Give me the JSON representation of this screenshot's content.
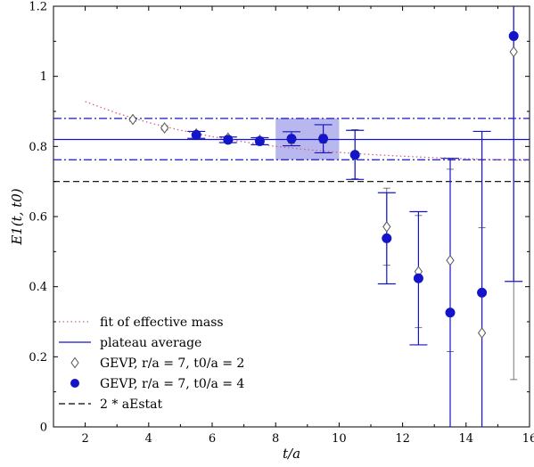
{
  "chart_data": {
    "type": "scatter",
    "xlabel": "t/a",
    "ylabel": "E1(t, t0)",
    "xlim": [
      1,
      16
    ],
    "ylim": [
      0,
      1.2
    ],
    "xticks": [
      "2",
      "4",
      "6",
      "8",
      "10",
      "12",
      "14",
      "16"
    ],
    "yticks": [
      "0",
      "0.2",
      "0.4",
      "0.6",
      "0.8",
      "1",
      "1.2"
    ],
    "legend_position": "bottom-left",
    "colors": {
      "blue": "#1414c8",
      "fit": "#d06080",
      "grey": "#555555",
      "band": "#9a9ae8"
    },
    "plateau": {
      "value": 0.82,
      "upper": 0.88,
      "lower": 0.762,
      "x_from": 8,
      "x_to": 10
    },
    "stat_threshold": 0.7,
    "fit_curve": {
      "x": [
        2,
        3,
        4,
        5,
        6,
        7,
        8,
        9,
        10,
        11,
        12,
        13,
        14,
        15,
        16
      ],
      "y": [
        0.928,
        0.895,
        0.868,
        0.846,
        0.828,
        0.813,
        0.8,
        0.791,
        0.783,
        0.777,
        0.772,
        0.768,
        0.765,
        0.762,
        0.76
      ]
    },
    "series": [
      {
        "name": "GEVP, r/a = 7, t0/a = 2",
        "marker": "diamond",
        "x": [
          3.5,
          4.5,
          5.5,
          6.5,
          7.5,
          8.5,
          9.5,
          10.5,
          11.5,
          12.5,
          13.5,
          14.5,
          15.5
        ],
        "y": [
          0.877,
          0.853,
          0.836,
          0.824,
          0.818,
          0.819,
          0.822,
          0.778,
          0.571,
          0.443,
          0.475,
          0.268,
          1.07
        ],
        "err": [
          0.005,
          0.006,
          0.006,
          0.006,
          0.008,
          0.01,
          0.012,
          0.07,
          0.11,
          0.16,
          0.26,
          0.3,
          0.935
        ]
      },
      {
        "name": "GEVP, r/a = 7, t0/a = 4",
        "marker": "circle",
        "x": [
          5.5,
          6.5,
          7.5,
          8.5,
          9.5,
          10.5,
          11.5,
          12.5,
          13.5,
          14.5,
          15.5
        ],
        "y": [
          0.833,
          0.819,
          0.815,
          0.822,
          0.822,
          0.776,
          0.538,
          0.424,
          0.326,
          0.383,
          1.115
        ],
        "err": [
          0.01,
          0.008,
          0.01,
          0.02,
          0.04,
          0.07,
          0.13,
          0.19,
          0.44,
          0.46,
          0.7
        ]
      }
    ],
    "legend": [
      {
        "label": "fit of effective mass",
        "style": "dotted"
      },
      {
        "label": "plateau average",
        "style": "solid"
      },
      {
        "label": "GEVP, r/a = 7, t0/a = 2",
        "style": "diamond"
      },
      {
        "label": "GEVP, r/a = 7, t0/a = 4",
        "style": "circle"
      },
      {
        "label": "2 * aEstat",
        "style": "dashed"
      }
    ]
  }
}
